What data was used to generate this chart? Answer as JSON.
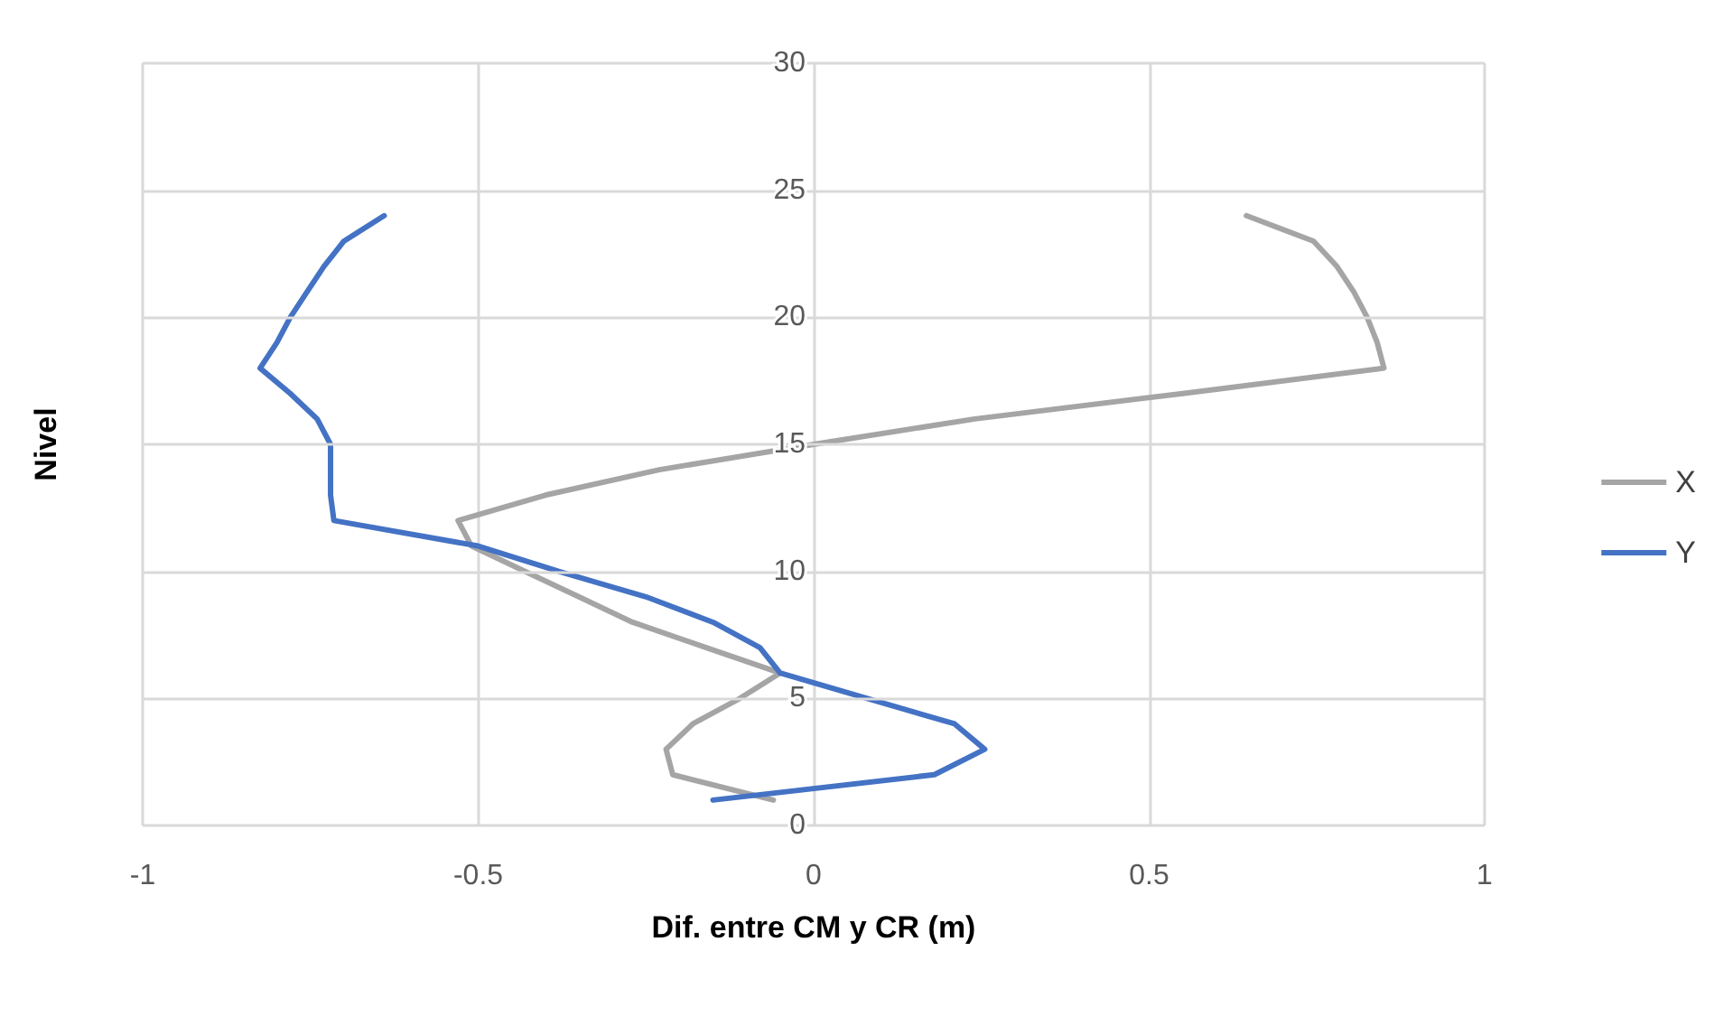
{
  "chart_data": {
    "type": "line",
    "xlabel": "Dif. entre CM y CR (m)",
    "ylabel": "Nivel",
    "xlim": [
      -1,
      1
    ],
    "xticks": [
      -1,
      -0.5,
      0,
      0.5,
      1
    ],
    "ylim": [
      0,
      30
    ],
    "yticks": [
      0,
      5,
      10,
      15,
      20,
      25,
      30
    ],
    "grid": true,
    "legend": "right",
    "marker": "none",
    "line_style": "solid",
    "series": [
      {
        "name": "X",
        "color": "#a5a5a5",
        "x": [
          -0.06,
          -0.21,
          -0.22,
          -0.18,
          -0.11,
          -0.05,
          -0.16,
          -0.27,
          -0.35,
          -0.43,
          -0.51,
          -0.53,
          -0.4,
          -0.23,
          0.0,
          0.24,
          0.55,
          0.85,
          0.84,
          0.825,
          0.805,
          0.78,
          0.745,
          0.645
        ],
        "values": [
          1,
          2,
          3,
          4,
          5,
          6,
          7,
          8,
          9,
          10,
          11,
          12,
          13,
          14,
          15,
          16,
          17,
          18,
          19,
          20,
          21,
          22,
          23,
          24
        ]
      },
      {
        "name": "Y",
        "color": "#4472c4",
        "x": [
          -0.15,
          0.18,
          0.255,
          0.21,
          0.08,
          -0.05,
          -0.08,
          -0.15,
          -0.25,
          -0.38,
          -0.5,
          -0.715,
          -0.72,
          -0.72,
          -0.72,
          -0.74,
          -0.78,
          -0.825,
          -0.8,
          -0.78,
          -0.755,
          -0.73,
          -0.7,
          -0.64
        ],
        "values": [
          1,
          2,
          3,
          4,
          5,
          6,
          7,
          8,
          9,
          10,
          11,
          12,
          13,
          14,
          15,
          16,
          17,
          18,
          19,
          20,
          21,
          22,
          23,
          24
        ]
      }
    ]
  }
}
